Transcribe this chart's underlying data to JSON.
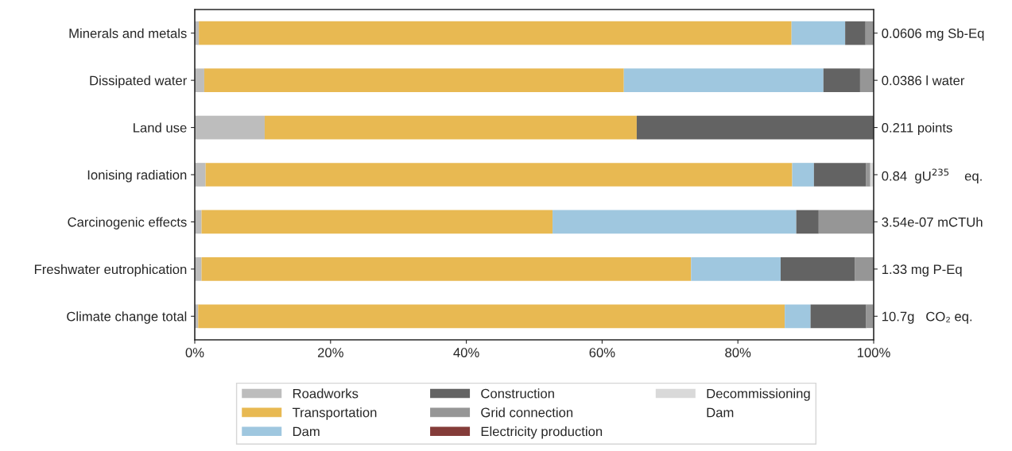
{
  "chart_data": {
    "type": "bar",
    "orientation": "horizontal",
    "stacked": true,
    "categories": [
      "Minerals and metals",
      "Dissipated water",
      "Land use",
      "Ionising radiation",
      "Carcinogenic effects",
      "Freshwater eutrophication",
      "Climate change total"
    ],
    "y2_categories": [
      "0.0606 mg Sb-Eq",
      "0.0386 l water",
      "0.211 points",
      "0.84  gU$^{235}$    eq.",
      "3.54e-07 mCTUh",
      "1.33 mg P-Eq",
      "10.7g   CO₂ eq."
    ],
    "series": [
      {
        "name": "Roadworks",
        "color": "#bdbdbd",
        "values": [
          0.6,
          1.4,
          10.3,
          1.6,
          1.0,
          1.0,
          0.5
        ]
      },
      {
        "name": "Transportation",
        "color": "#e8b952",
        "values": [
          87.3,
          61.8,
          54.8,
          86.4,
          51.7,
          72.1,
          86.4
        ]
      },
      {
        "name": "Dam",
        "color": "#9fc7df",
        "values": [
          7.9,
          29.4,
          0,
          3.2,
          35.9,
          13.2,
          3.8
        ]
      },
      {
        "name": "Construction",
        "color": "#636363",
        "values": [
          3.0,
          5.4,
          34.9,
          7.7,
          3.3,
          10.9,
          8.2
        ]
      },
      {
        "name": "Grid connection",
        "color": "#969696",
        "values": [
          1.2,
          2.0,
          0,
          0.6,
          8.1,
          2.8,
          1.0
        ]
      },
      {
        "name": "Electricity production",
        "color": "#843c39",
        "values": [
          0,
          0,
          0,
          0,
          0,
          0,
          0
        ]
      },
      {
        "name": "Decommissioning",
        "color": "#d9d9d9",
        "values": [
          0,
          0,
          0,
          0.5,
          0,
          0,
          0.1
        ]
      },
      {
        "name": "Dam",
        "values": [
          0,
          0,
          0,
          0,
          0,
          0,
          0
        ]
      }
    ],
    "xlim": [
      0,
      100
    ],
    "xticks": [
      {
        "value": 0,
        "label": "0%"
      },
      {
        "value": 20,
        "label": "20%"
      },
      {
        "value": 40,
        "label": "40%"
      },
      {
        "value": 60,
        "label": "60%"
      },
      {
        "value": 80,
        "label": "80%"
      },
      {
        "value": 100,
        "label": "100%"
      }
    ],
    "grid": false,
    "legend": "bottom"
  }
}
